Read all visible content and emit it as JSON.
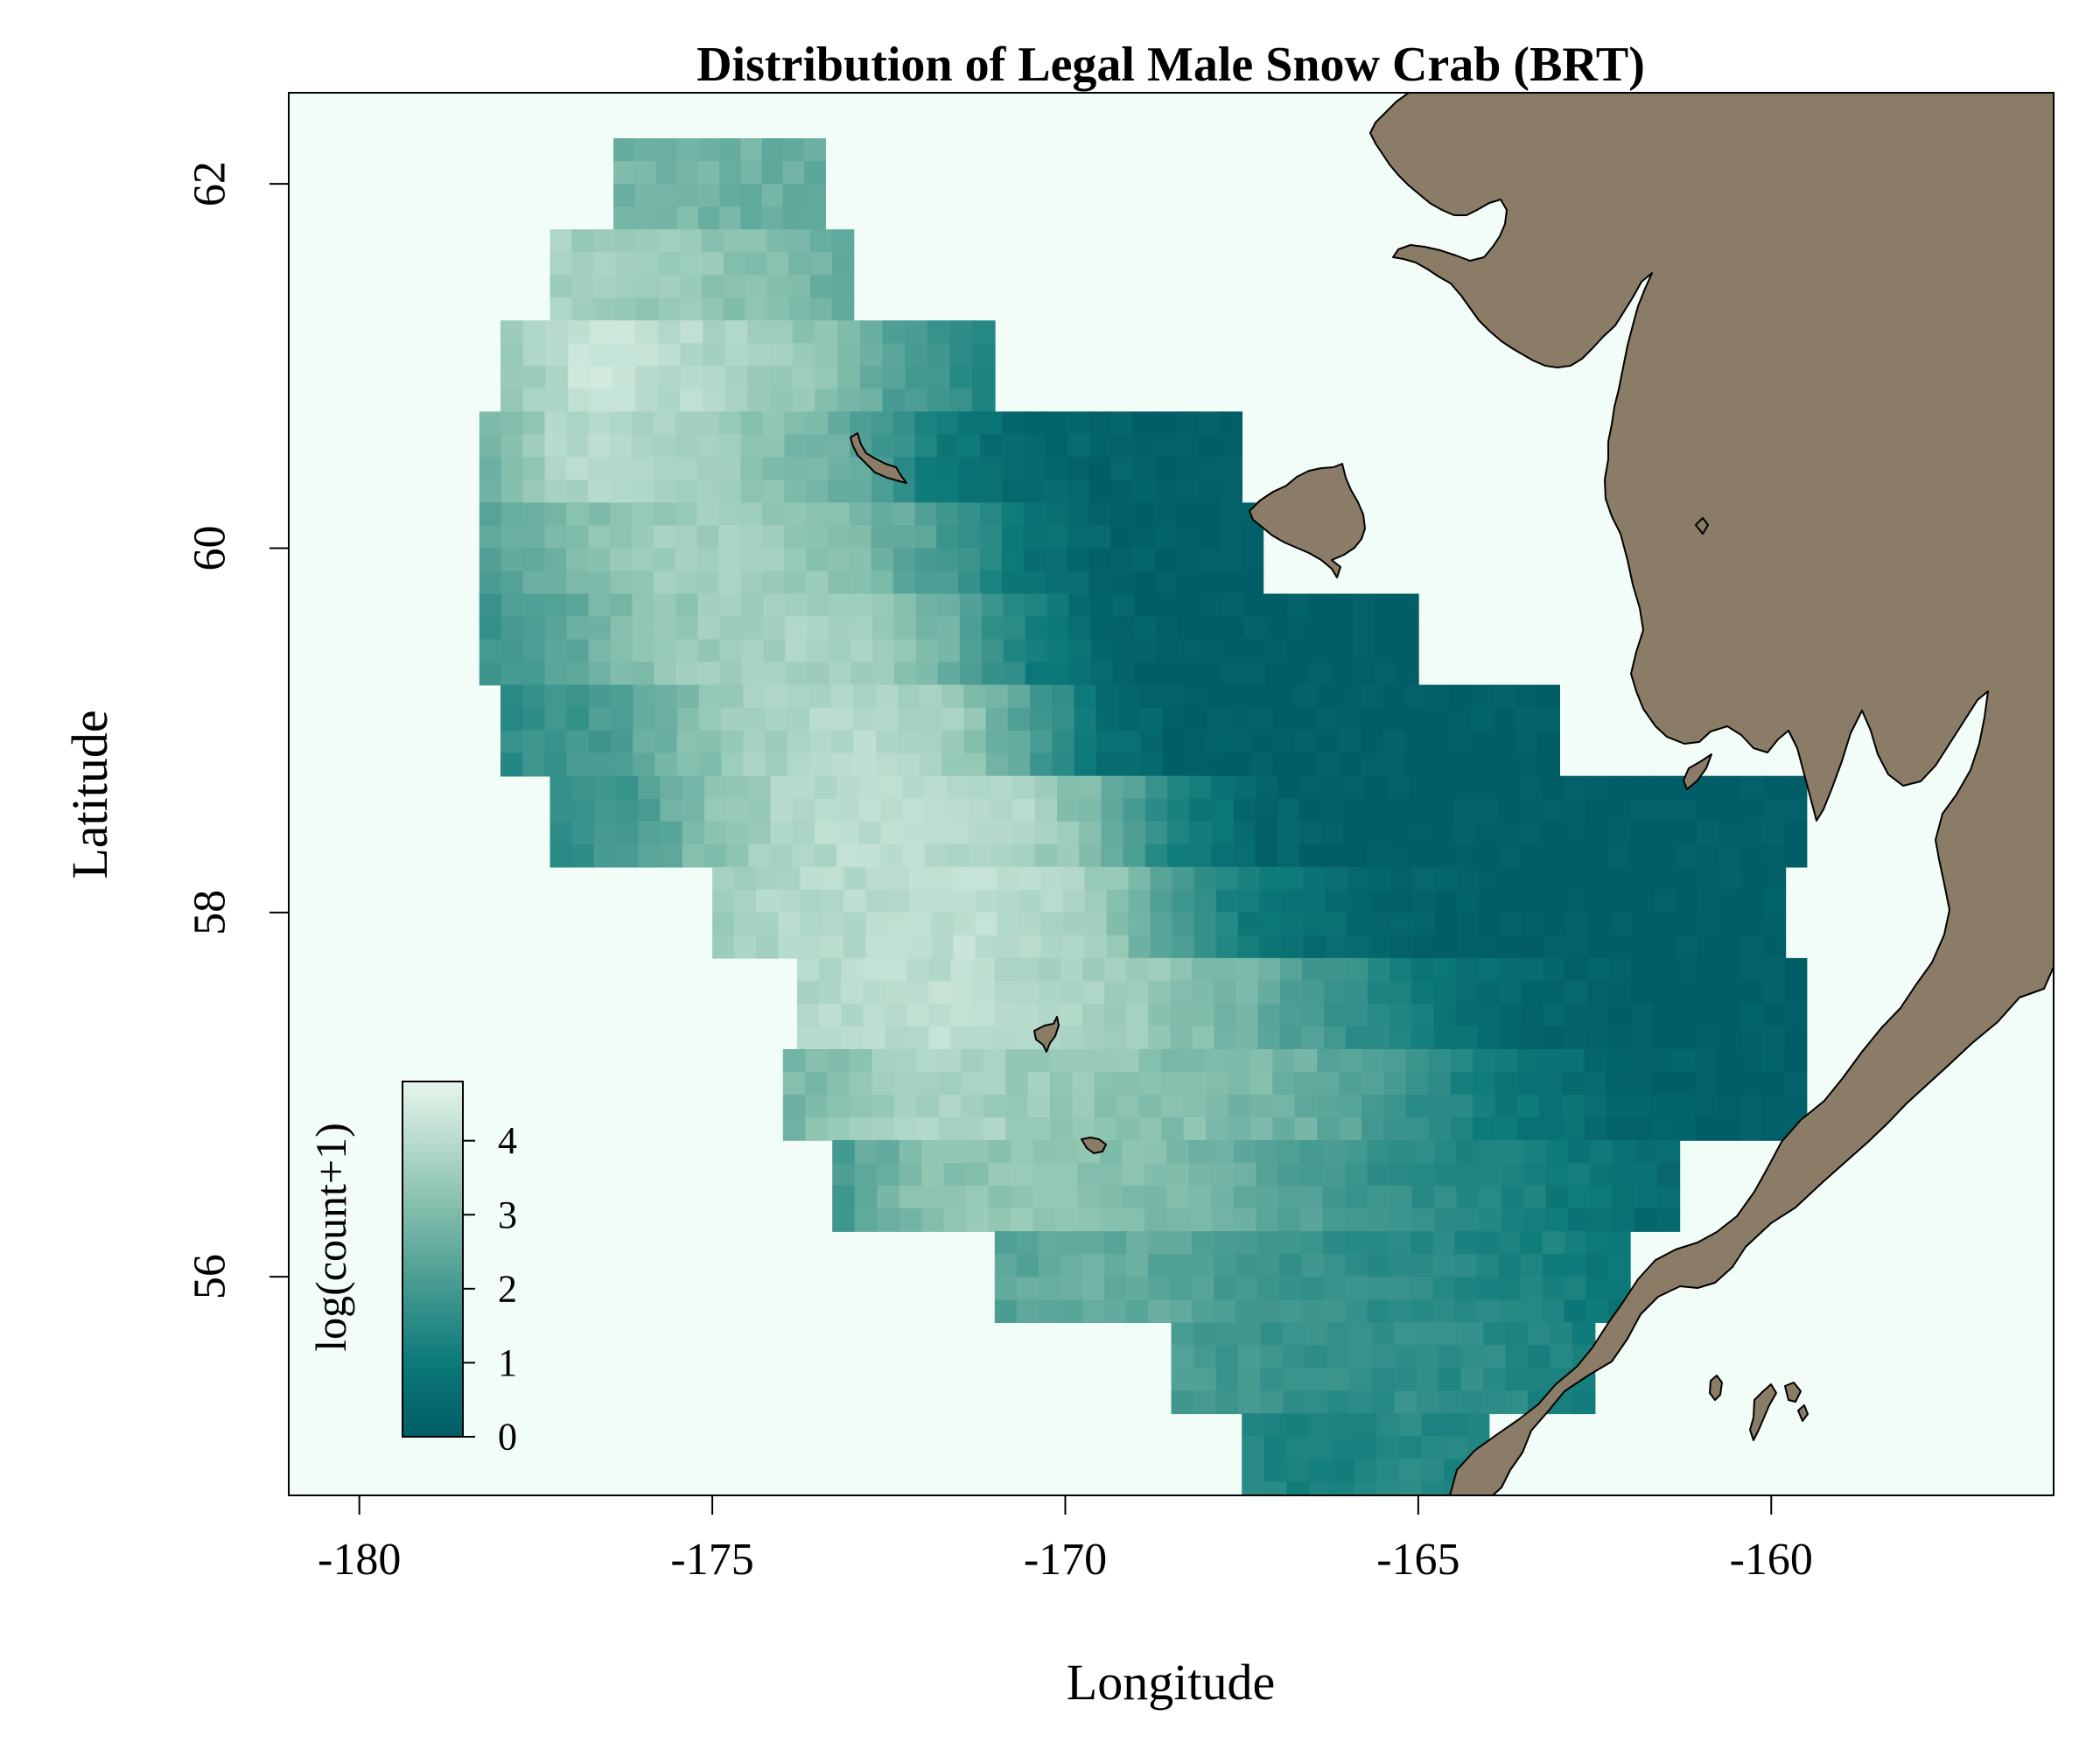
{
  "title": "Distribution of Legal Male Snow Crab (BRT)",
  "colors": {
    "background": "#f3fdf7",
    "land": "#8a7c66",
    "low": "#015d66",
    "mid": "#4d9e94",
    "high": "#e6f5ec"
  },
  "chart_data": {
    "type": "heatmap",
    "title": "Distribution of Legal Male Snow Crab (BRT)",
    "xlabel": "Longitude",
    "ylabel": "Latitude",
    "xlim": [
      -181,
      -156
    ],
    "ylim": [
      54.8,
      62.5
    ],
    "x_ticks": [
      -180,
      -175,
      -170,
      -165,
      -160
    ],
    "y_ticks": [
      56,
      58,
      60,
      62
    ],
    "x_tick_labels": [
      "-180",
      "-175",
      "-170",
      "-165",
      "-160"
    ],
    "y_tick_labels": [
      "56",
      "58",
      "60",
      "62"
    ],
    "grid": false,
    "legend": {
      "title": "log(count+1)",
      "placement": "bottom-left",
      "range": [
        0,
        4.8
      ],
      "ticks": [
        0,
        1,
        2,
        3,
        4
      ],
      "tick_labels": [
        "0",
        "1",
        "2",
        "3",
        "4"
      ]
    },
    "values": [
      {
        "lat": 62.0,
        "lon_start": -176.4,
        "lon_end": -173.4,
        "values": [
          2.8,
          2.9,
          2.7,
          2.5
        ]
      },
      {
        "lat": 61.5,
        "lon_start": -177.3,
        "lon_end": -173.0,
        "values": [
          3.6,
          3.5,
          3.3,
          3.0,
          2.6
        ]
      },
      {
        "lat": 61.0,
        "lon_start": -178.0,
        "lon_end": -171.0,
        "values": [
          3.2,
          4.3,
          4.0,
          3.7,
          3.2,
          2.0,
          1.3
        ]
      },
      {
        "lat": 60.5,
        "lon_start": -178.3,
        "lon_end": -167.5,
        "values": [
          2.6,
          3.8,
          3.9,
          3.5,
          3.1,
          2.4,
          1.0,
          0.5,
          0.2,
          0.1,
          0.0
        ]
      },
      {
        "lat": 60.0,
        "lon_start": -178.3,
        "lon_end": -167.2,
        "values": [
          2.2,
          2.9,
          3.4,
          3.6,
          3.4,
          2.9,
          2.0,
          0.8,
          0.2,
          0.0,
          0.0
        ]
      },
      {
        "lat": 59.5,
        "lon_start": -178.3,
        "lon_end": -165.0,
        "values": [
          1.8,
          2.4,
          3.1,
          3.5,
          3.7,
          3.5,
          2.7,
          1.2,
          0.3,
          0.0,
          0.0,
          0.0,
          0.0
        ]
      },
      {
        "lat": 59.0,
        "lon_start": -178.0,
        "lon_end": -163.0,
        "values": [
          1.6,
          1.9,
          2.6,
          3.4,
          3.8,
          3.9,
          3.5,
          2.2,
          0.6,
          0.1,
          0.0,
          0.0,
          0.0,
          0.0,
          0.0
        ]
      },
      {
        "lat": 58.5,
        "lon_start": -177.3,
        "lon_end": -159.5,
        "values": [
          1.7,
          2.0,
          3.1,
          3.8,
          4.0,
          4.0,
          3.8,
          2.9,
          1.2,
          0.3,
          0.0,
          0.0,
          0.0,
          0.0,
          0.0,
          0.0,
          0.0
        ]
      },
      {
        "lat": 58.0,
        "lon_start": -175.0,
        "lon_end": -159.8,
        "values": [
          3.5,
          3.9,
          4.0,
          4.1,
          4.0,
          3.6,
          2.3,
          1.0,
          0.5,
          0.2,
          0.0,
          0.0,
          0.0,
          0.0,
          0.0
        ]
      },
      {
        "lat": 57.5,
        "lon_start": -173.8,
        "lon_end": -159.5,
        "values": [
          3.8,
          4.0,
          4.0,
          3.8,
          3.6,
          3.2,
          2.6,
          1.8,
          1.0,
          0.5,
          0.2,
          0.0,
          0.0,
          0.0
        ]
      },
      {
        "lat": 57.0,
        "lon_start": -174.0,
        "lon_end": -159.5,
        "values": [
          2.8,
          3.4,
          3.8,
          3.5,
          3.3,
          3.1,
          2.9,
          2.5,
          1.8,
          1.0,
          0.6,
          0.2,
          0.0,
          0.0
        ]
      },
      {
        "lat": 56.5,
        "lon_start": -173.3,
        "lon_end": -161.3,
        "values": [
          2.0,
          3.0,
          3.3,
          3.2,
          3.0,
          2.8,
          2.3,
          1.8,
          1.5,
          1.2,
          0.8,
          0.3
        ]
      },
      {
        "lat": 56.0,
        "lon_start": -171.0,
        "lon_end": -162.0,
        "values": [
          2.3,
          2.6,
          2.5,
          2.1,
          1.8,
          1.6,
          1.4,
          1.2,
          0.7
        ]
      },
      {
        "lat": 55.5,
        "lon_start": -168.5,
        "lon_end": -162.5,
        "values": [
          2.2,
          1.9,
          1.7,
          1.6,
          1.5,
          1.1
        ]
      },
      {
        "lat": 55.0,
        "lon_start": -167.5,
        "lon_end": -164.0,
        "values": [
          1.4,
          1.2,
          1.5,
          1.3
        ]
      }
    ]
  }
}
